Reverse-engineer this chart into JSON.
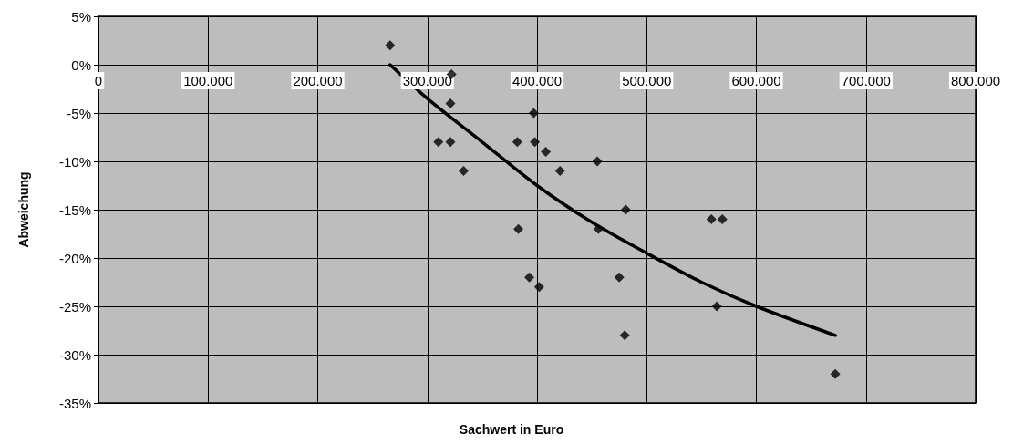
{
  "chart_data": {
    "type": "scatter",
    "xlabel": "Sachwert in Euro",
    "ylabel": "Abweichung",
    "xlim": [
      0,
      800000
    ],
    "ylim": [
      -35,
      5
    ],
    "xticks": [
      0,
      {
        "value": 100000,
        "label": "100.000"
      },
      {
        "value": 200000,
        "label": "200.000"
      },
      {
        "value": 300000,
        "label": "300.000"
      },
      {
        "value": 400000,
        "label": "400.000"
      },
      {
        "value": 500000,
        "label": "500.000"
      },
      {
        "value": 600000,
        "label": "600.000"
      },
      {
        "value": 700000,
        "label": "700.000"
      },
      {
        "value": 800000,
        "label": "800.000"
      }
    ],
    "yticks": [
      {
        "value": 5,
        "label": "5%"
      },
      {
        "value": 0,
        "label": "0%"
      },
      {
        "value": -5,
        "label": "-5%"
      },
      {
        "value": -10,
        "label": "-10%"
      },
      {
        "value": -15,
        "label": "-15%"
      },
      {
        "value": -20,
        "label": "-20%"
      },
      {
        "value": -25,
        "label": "-25%"
      },
      {
        "value": -30,
        "label": "-30%"
      },
      {
        "value": -35,
        "label": "-35%"
      }
    ],
    "grid": true,
    "series": [
      {
        "color": "#000000",
        "marker": "diamond",
        "x": [
          266000,
          322000,
          321000,
          310000,
          321000,
          333000,
          382000,
          397000,
          398000,
          408000,
          421000,
          455000,
          481000,
          559000,
          569000,
          383000,
          456000,
          393000,
          402000,
          475000,
          564000,
          480000,
          672000
        ],
        "values": [
          2,
          -1,
          -4,
          -8,
          -8,
          -11,
          -8,
          -5,
          -8,
          -9,
          -11,
          -10,
          -15,
          -16,
          -16,
          -17,
          -17,
          -22,
          -23,
          -22,
          -25,
          -28,
          -32
        ]
      },
      {
        "type": "line",
        "color": "#000000",
        "marker": "none",
        "line_style": "solid",
        "x": [
          266000,
          300000,
          350000,
          400000,
          450000,
          500000,
          550000,
          600000,
          672000
        ],
        "values": [
          0,
          -3.5,
          -8,
          -12.5,
          -16.3,
          -19.5,
          -22.5,
          -25,
          -28
        ]
      }
    ]
  }
}
